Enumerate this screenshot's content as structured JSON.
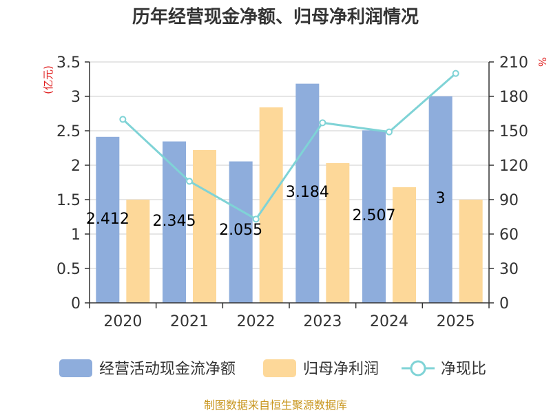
{
  "chart_data": {
    "type": "bar",
    "title": "历年经营现金净额、归母净利润情况",
    "categories": [
      "2020",
      "2021",
      "2022",
      "2023",
      "2024",
      "2025"
    ],
    "series": [
      {
        "name": "经营活动现金流净额",
        "axis": "left",
        "kind": "bar",
        "values": [
          2.412,
          2.345,
          2.055,
          3.184,
          2.507,
          3
        ],
        "labels": [
          "2.412",
          "2.345",
          "2.055",
          "3.184",
          "2.507",
          "3"
        ]
      },
      {
        "name": "归母净利润",
        "axis": "left",
        "kind": "bar",
        "values": [
          1.5,
          2.22,
          2.84,
          2.03,
          1.68,
          1.5
        ]
      },
      {
        "name": "净现比",
        "axis": "right",
        "kind": "line",
        "values": [
          160,
          106,
          73,
          157,
          149,
          200
        ]
      }
    ],
    "yleft": {
      "label": "(亿元)",
      "ylim": [
        0,
        3.5
      ],
      "ticks": [
        "0",
        "0.5",
        "1",
        "1.5",
        "2",
        "2.5",
        "3",
        "3.5"
      ]
    },
    "yright": {
      "label": "%",
      "ylim": [
        0,
        210
      ],
      "ticks": [
        "0",
        "30",
        "60",
        "90",
        "120",
        "150",
        "180",
        "210"
      ]
    },
    "grid": true,
    "legend_position": "bottom",
    "colors": {
      "cashflow": "#8eaddc",
      "profit": "#fdd899",
      "ratio": "#7fd3d6",
      "title": "#333333",
      "axis": "#333333",
      "grid": "#cccccc",
      "ylabel": "#e02020",
      "source": "#c8961e"
    }
  },
  "source": "制图数据来自恒生聚源数据库"
}
